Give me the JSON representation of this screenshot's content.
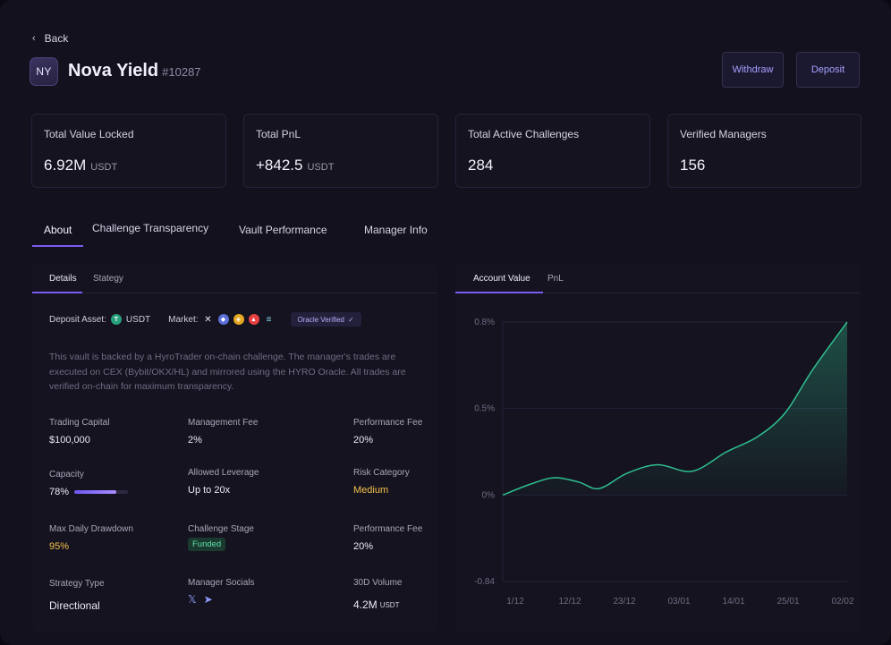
{
  "header": {
    "back_label": "Back",
    "avatar_initials": "NY",
    "name": "Nova Yield",
    "id": "#10287",
    "withdraw_label": "Withdraw",
    "deposit_label": "Deposit"
  },
  "stats": [
    {
      "label": "Total Value Locked",
      "value": "6.92M",
      "unit": "USDT"
    },
    {
      "label": "Total PnL",
      "value": "+842.5",
      "unit": "USDT"
    },
    {
      "label": "Total Active Challenges",
      "value": "284",
      "unit": ""
    },
    {
      "label": "Verified Managers",
      "value": "156",
      "unit": ""
    }
  ],
  "tabs": [
    "About",
    "Challenge Transparency",
    "Vault Performance",
    "Manager Info"
  ],
  "details": {
    "subtabs": [
      "Details",
      "Stategy"
    ],
    "deposit_asset_label": "Deposit Asset:",
    "deposit_asset": "USDT",
    "market_label": "Market:",
    "oracle_label": "Oracle Verified",
    "description": "This vault is backed by a HyroTrader on-chain challenge. The manager's trades are executed on CEX (Bybit/OKX/HL) and mirrored using the HYRO Oracle. All trades are verified on-chain for maximum transparency.",
    "fields": {
      "trading_capital": {
        "label": "Trading Capital",
        "value": "$100,000"
      },
      "management_fee": {
        "label": "Management Fee",
        "value": "2%"
      },
      "performance_fee": {
        "label": "Performance Fee",
        "value": "20%"
      },
      "capacity": {
        "label": "Capacity",
        "value": "78%",
        "fraction": 0.78
      },
      "allowed_leverage": {
        "label": "Allowed Leverage",
        "value": "Up to 20x"
      },
      "risk_category": {
        "label": "Risk Category",
        "value": "Medium"
      },
      "max_daily_drawdown": {
        "label": "Max Daily Drawdown",
        "value": "95%"
      },
      "challenge_stage": {
        "label": "Challenge Stage",
        "value": "Funded"
      },
      "performance_fee_2": {
        "label": "Performance Fee",
        "value": "20%"
      },
      "strategy_type": {
        "label": "Strategy Type",
        "value": "Directional"
      },
      "manager_socials": {
        "label": "Manager Socials"
      },
      "volume_30d": {
        "label": "30D Volume",
        "value": "4.2M",
        "unit": "USDT"
      }
    }
  },
  "performance": {
    "subtabs": [
      "Account Value",
      "PnL"
    ]
  },
  "chart_data": {
    "type": "area",
    "x": [
      "1/12",
      "12/12",
      "23/12",
      "03/01",
      "14/01",
      "25/01",
      "02/02"
    ],
    "y_ticks": [
      "0.8%",
      "0.5%",
      "0%",
      "-0.84"
    ],
    "ylim": [
      -0.84,
      0.8
    ],
    "points": [
      [
        0,
        0
      ],
      [
        0.08,
        0.05
      ],
      [
        0.15,
        0.08
      ],
      [
        0.22,
        0.06
      ],
      [
        0.28,
        0.03
      ],
      [
        0.36,
        0.1
      ],
      [
        0.45,
        0.14
      ],
      [
        0.55,
        0.11
      ],
      [
        0.65,
        0.2
      ],
      [
        0.74,
        0.27
      ],
      [
        0.82,
        0.38
      ],
      [
        0.9,
        0.58
      ],
      [
        1.0,
        0.8
      ]
    ],
    "color": "#2fbf8f",
    "grid": true
  }
}
